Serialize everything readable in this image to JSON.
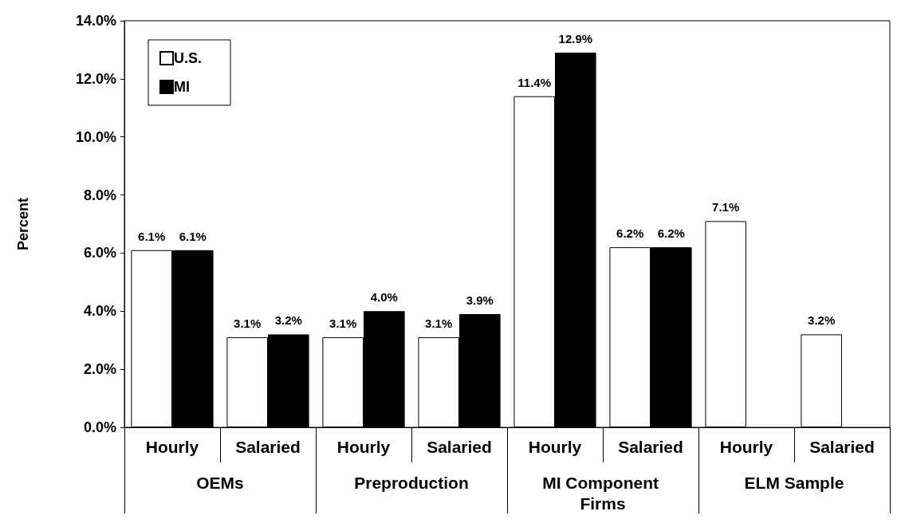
{
  "chart_data": {
    "type": "bar",
    "ylabel": "Percent",
    "categories": [
      "Hourly",
      "Salaried",
      "Hourly",
      "Salaried",
      "Hourly",
      "Salaried",
      "Hourly",
      "Salaried"
    ],
    "annotations": [
      "OEMs",
      "Preproduction",
      "MI Component Firms",
      "ELM Sample"
    ],
    "series": [
      {
        "name": "U.S.",
        "color": "#ffffff",
        "values": [
          6.1,
          3.1,
          3.1,
          3.1,
          11.4,
          6.2,
          7.1,
          3.2
        ],
        "value_labels": [
          "6.1%",
          "3.1%",
          "3.1%",
          "3.1%",
          "11.4%",
          "6.2%",
          "7.1%",
          "3.2%"
        ]
      },
      {
        "name": "MI",
        "color": "#000000",
        "values": [
          6.1,
          3.2,
          4.0,
          3.9,
          12.9,
          6.2,
          null,
          null
        ],
        "value_labels": [
          "6.1%",
          "3.2%",
          "4.0%",
          "3.9%",
          "12.9%",
          "6.2%",
          null,
          null
        ]
      }
    ],
    "ylim": [
      0,
      14
    ],
    "yticks": [
      {
        "value": 0,
        "label": "0.0%"
      },
      {
        "value": 2,
        "label": "2.0%"
      },
      {
        "value": 4,
        "label": "4.0%"
      },
      {
        "value": 6,
        "label": "6.0%"
      },
      {
        "value": 8,
        "label": "8.0%"
      },
      {
        "value": 10,
        "label": "10.0%"
      },
      {
        "value": 12,
        "label": "12.0%"
      },
      {
        "value": 14,
        "label": "14.0%"
      }
    ],
    "grid": false,
    "legend": "top left"
  }
}
